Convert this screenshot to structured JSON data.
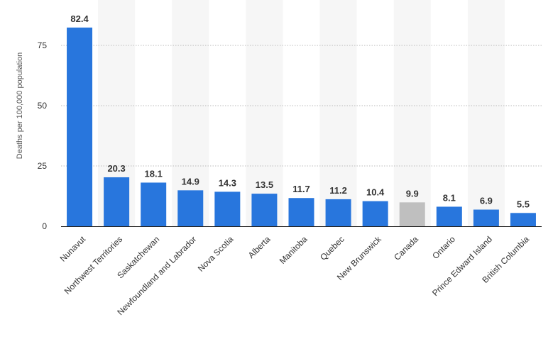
{
  "chart_data": {
    "type": "bar",
    "title": "",
    "xlabel": "",
    "ylabel": "Deaths per 100,000 population",
    "ylim": [
      0,
      90
    ],
    "yticks": [
      0,
      25,
      50,
      75
    ],
    "grid": true,
    "categories": [
      "Nunavut",
      "Northwest Territories",
      "Saskatchewan",
      "Newfoundland and Labrador",
      "Nova Scotia",
      "Alberta",
      "Manitoba",
      "Quebec",
      "New Brunswick",
      "Canada",
      "Ontario",
      "Prince Edward Island",
      "British Columbia"
    ],
    "values": [
      82.4,
      20.3,
      18.1,
      14.9,
      14.3,
      13.5,
      11.7,
      11.2,
      10.4,
      9.9,
      8.1,
      6.9,
      5.5
    ],
    "value_labels": [
      "82.4",
      "20.3",
      "18.1",
      "14.9",
      "14.3",
      "13.5",
      "11.7",
      "11.2",
      "10.4",
      "9.9",
      "8.1",
      "6.9",
      "5.5"
    ],
    "highlight": "Canada",
    "colors": {
      "bar": "#2876dd",
      "highlight": "#bfbfbf",
      "band": "#f6f6f6",
      "grid": "#bbbbbb",
      "axis": "#222222"
    }
  }
}
